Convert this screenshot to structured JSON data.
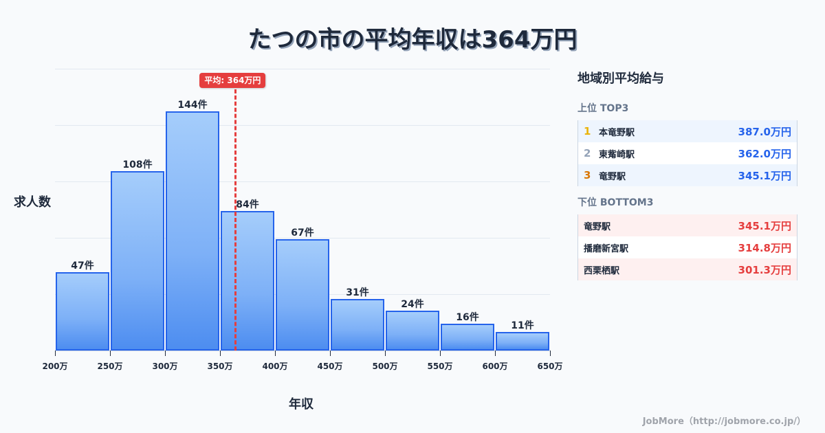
{
  "title": "たつの市の平均年収は364万円",
  "chart_data": {
    "type": "bar",
    "title": "たつの市の平均年収は364万円",
    "xlabel": "年収",
    "ylabel": "求人数",
    "categories": [
      "200-250万",
      "250-300万",
      "300-350万",
      "350-400万",
      "400-450万",
      "450-500万",
      "500-550万",
      "550-600万",
      "600-650万"
    ],
    "values": [
      47,
      108,
      144,
      84,
      67,
      31,
      24,
      16,
      11
    ],
    "value_labels": [
      "47件",
      "108件",
      "144件",
      "84件",
      "67件",
      "31件",
      "24件",
      "16件",
      "11件"
    ],
    "x_ticks": [
      "200万",
      "250万",
      "300万",
      "350万",
      "400万",
      "450万",
      "500万",
      "550万",
      "600万",
      "650万"
    ],
    "xlim": [
      200,
      650
    ],
    "ylim": [
      0,
      170
    ],
    "grid": true,
    "annotation": {
      "type": "vline",
      "x": 364,
      "label": "平均: 364万円",
      "color": "#e53e3e"
    },
    "bar_color": "#4d8df0",
    "bar_edge_color": "#2563eb"
  },
  "axis": {
    "ylabel": "求人数",
    "xlabel": "年収",
    "ticks": [
      "200万",
      "250万",
      "300万",
      "350万",
      "400万",
      "450万",
      "500万",
      "550万",
      "600万",
      "650万"
    ]
  },
  "bars": [
    {
      "label": "47件"
    },
    {
      "label": "108件"
    },
    {
      "label": "144件"
    },
    {
      "label": "84件"
    },
    {
      "label": "67件"
    },
    {
      "label": "31件"
    },
    {
      "label": "24件"
    },
    {
      "label": "16件"
    },
    {
      "label": "11件"
    }
  ],
  "average": {
    "label": "平均: 364万円",
    "value": 364
  },
  "panel": {
    "title": "地域別平均給与",
    "top_title": "上位 TOP3",
    "top": [
      {
        "rank": "1",
        "name": "本竜野駅",
        "value": "387.0万円",
        "rank_color": "#eab308"
      },
      {
        "rank": "2",
        "name": "東觜崎駅",
        "value": "362.0万円",
        "rank_color": "#94a3b8"
      },
      {
        "rank": "3",
        "name": "竜野駅",
        "value": "345.1万円",
        "rank_color": "#d97706"
      }
    ],
    "bottom_title": "下位 BOTTOM3",
    "bottom": [
      {
        "name": "竜野駅",
        "value": "345.1万円"
      },
      {
        "name": "播磨新宮駅",
        "value": "314.8万円"
      },
      {
        "name": "西栗栖駅",
        "value": "301.3万円"
      }
    ]
  },
  "footer": "JobMore（http://jobmore.co.jp/）",
  "colors": {
    "accent_blue": "#2563eb",
    "accent_red": "#e53e3e",
    "text": "#1e293b"
  }
}
